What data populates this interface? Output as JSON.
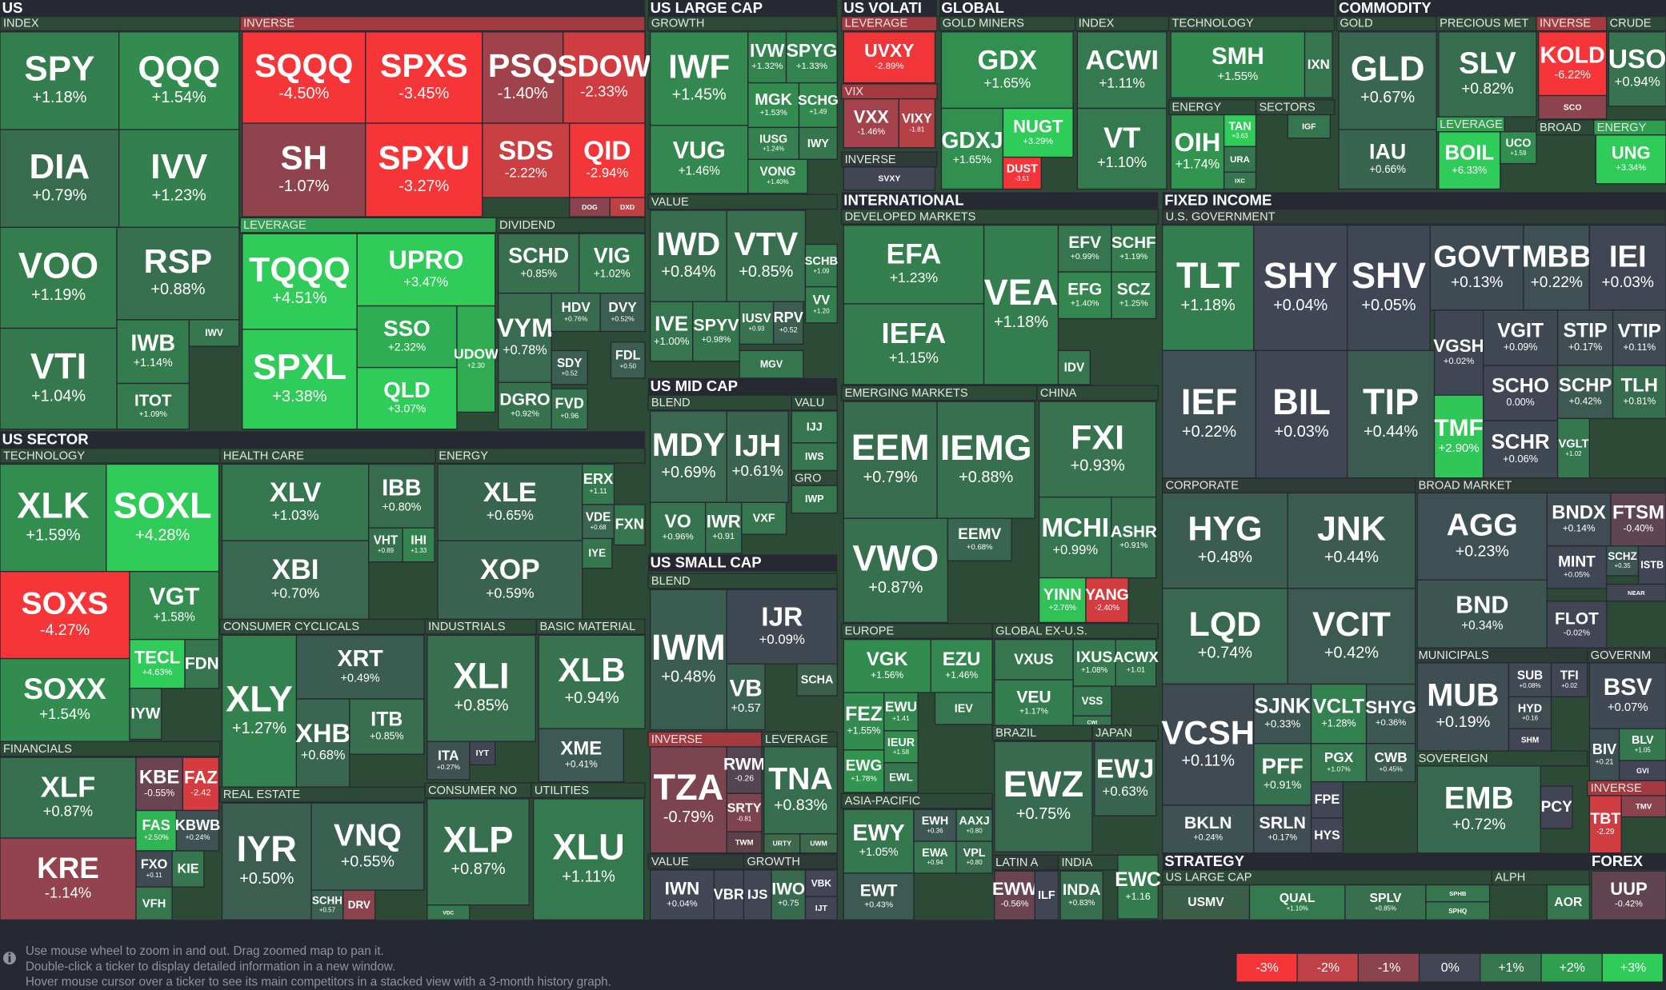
{
  "headers": [
    "US",
    "US LARGE CAP",
    "US VOLATI",
    "GLOBAL",
    "COMMODITY",
    "US SECTOR",
    "US MID CAP",
    "US SMALL CAP",
    "INTERNATIONAL",
    "FIXED INCOME",
    "STRATEGY",
    "FOREX"
  ],
  "group_labels": [
    "INDEX",
    "INVERSE",
    "LEVERAGE",
    "DIVIDEND",
    "GROWTH",
    "VALUE",
    "BLEND",
    "VALU",
    "GRO",
    "BLEND",
    "INVERSE",
    "LEVERAGE",
    "VALUE",
    "GROWTH",
    "LEVERAGE",
    "VIX",
    "INVERSE",
    "GOLD MINERS",
    "INDEX",
    "TECHNOLOGY",
    "ENERGY",
    "SECTORS",
    "GOLD",
    "PRECIOUS MET",
    "INVERSE",
    "CRUDE",
    "LEVERAGE",
    "BROAD",
    "ENERGY",
    "DEVELOPED MARKETS",
    "EMERGING MARKETS",
    "CHINA",
    "EUROPE",
    "GLOBAL EX-U.S.",
    "BRAZIL",
    "JAPAN",
    "ASIA-PACIFIC",
    "LATIN A",
    "INDIA",
    "U.S. GOVERNMENT",
    "CORPORATE",
    "BROAD MARKET",
    "MUNICIPALS",
    "GOVERNM",
    "SOVEREIGN",
    "INVERSE",
    "US LARGE CAP",
    "ALPH",
    "TECHNOLOGY",
    "HEALTH CARE",
    "ENERGY",
    "CONSUMER CYCLICALS",
    "INDUSTRIALS",
    "BASIC MATERIAL",
    "REAL ESTATE",
    "CONSUMER NO",
    "UTILITIES",
    "FINANCIALS"
  ],
  "tiles": [
    {
      "ticker": "SPY",
      "change": "+1.18%"
    },
    {
      "ticker": "QQQ",
      "change": "+1.54%"
    },
    {
      "ticker": "DIA",
      "change": "+0.79%"
    },
    {
      "ticker": "IVV",
      "change": "+1.23%"
    },
    {
      "ticker": "VOO",
      "change": "+1.19%"
    },
    {
      "ticker": "RSP",
      "change": "+0.88%"
    },
    {
      "ticker": "VTI",
      "change": "+1.04%"
    },
    {
      "ticker": "IWB",
      "change": "+1.14%"
    },
    {
      "ticker": "IWV",
      "color": "#35764e"
    },
    {
      "ticker": "ITOT",
      "change": "+1.09%"
    },
    {
      "ticker": "SQQQ",
      "change": "-4.50%"
    },
    {
      "ticker": "SPXS",
      "change": "-3.45%"
    },
    {
      "ticker": "PSQ",
      "change": "-1.40%"
    },
    {
      "ticker": "SDOW",
      "change": "-2.33%"
    },
    {
      "ticker": "SH",
      "change": "-1.07%"
    },
    {
      "ticker": "SPXU",
      "change": "-3.27%"
    },
    {
      "ticker": "SDS",
      "change": "-2.22%"
    },
    {
      "ticker": "QID",
      "change": "-2.94%"
    },
    {
      "ticker": "DOG",
      "color": "#8b444e"
    },
    {
      "ticker": "DXD",
      "color": "#bf4045"
    },
    {
      "ticker": "TQQQ",
      "change": "+4.51%"
    },
    {
      "ticker": "UPRO",
      "change": "+3.47%"
    },
    {
      "ticker": "SPXL",
      "change": "+3.38%"
    },
    {
      "ticker": "SSO",
      "change": "+2.32%"
    },
    {
      "ticker": "UDOW",
      "change": "+2.30"
    },
    {
      "ticker": "QLD",
      "change": "+3.07%"
    },
    {
      "ticker": "SCHD",
      "change": "+0.85%"
    },
    {
      "ticker": "VIG",
      "change": "+1.02%"
    },
    {
      "ticker": "VYM",
      "change": "+0.78%"
    },
    {
      "ticker": "HDV",
      "change": "+0.76%"
    },
    {
      "ticker": "DVY",
      "change": "+0.52%"
    },
    {
      "ticker": "SDY",
      "change": "+0.52"
    },
    {
      "ticker": "FDL",
      "change": "+0.50"
    },
    {
      "ticker": "DGRO",
      "change": "+0.92%"
    },
    {
      "ticker": "FVD",
      "change": "+0.96"
    },
    {
      "ticker": "IWF",
      "change": "+1.45%"
    },
    {
      "ticker": "IVW",
      "change": "+1.32%"
    },
    {
      "ticker": "SPYG",
      "change": "+1.33%"
    },
    {
      "ticker": "MGK",
      "change": "+1.53%"
    },
    {
      "ticker": "SCHG",
      "change": "+1.49"
    },
    {
      "ticker": "VUG",
      "change": "+1.46%"
    },
    {
      "ticker": "IUSG",
      "change": "+1.24%"
    },
    {
      "ticker": "IWY",
      "color": "#35764e"
    },
    {
      "ticker": "VONG",
      "change": "+1.40%"
    },
    {
      "ticker": "IWD",
      "change": "+0.84%"
    },
    {
      "ticker": "VTV",
      "change": "+0.85%"
    },
    {
      "ticker": "SCHB",
      "change": "+1.09"
    },
    {
      "ticker": "VV",
      "change": "+1.20"
    },
    {
      "ticker": "IVE",
      "change": "+1.00%"
    },
    {
      "ticker": "SPYV",
      "change": "+0.98%"
    },
    {
      "ticker": "IUSV",
      "change": "+0.93"
    },
    {
      "ticker": "RPV",
      "change": "+0.52"
    },
    {
      "ticker": "MGV",
      "color": "#35764e"
    },
    {
      "ticker": "MDY",
      "change": "+0.69%"
    },
    {
      "ticker": "IJH",
      "change": "+0.61%"
    },
    {
      "ticker": "VO",
      "change": "+0.96%"
    },
    {
      "ticker": "IWR",
      "change": "+0.91"
    },
    {
      "ticker": "VXF",
      "color": "#35764e"
    },
    {
      "ticker": "IJJ",
      "color": "#35764e"
    },
    {
      "ticker": "IWS",
      "color": "#35764e"
    },
    {
      "ticker": "IWP",
      "color": "#35764e"
    },
    {
      "ticker": "IWM",
      "change": "+0.48%"
    },
    {
      "ticker": "IJR",
      "change": "+0.09%"
    },
    {
      "ticker": "VB",
      "change": "+0.57"
    },
    {
      "ticker": "SCHA",
      "color": "#3a5e47"
    },
    {
      "ticker": "TZA",
      "change": "-0.79%"
    },
    {
      "ticker": "RWM",
      "change": "-0.26"
    },
    {
      "ticker": "SRTY",
      "change": "-0.81"
    },
    {
      "ticker": "TWM",
      "color": "#5e4048"
    },
    {
      "ticker": "TNA",
      "change": "+0.83%"
    },
    {
      "ticker": "URTY",
      "color": "#3f6a4a"
    },
    {
      "ticker": "UWM",
      "color": "#3f6a4a"
    },
    {
      "ticker": "IWN",
      "change": "+0.04%"
    },
    {
      "ticker": "VBR",
      "color": "#414554"
    },
    {
      "ticker": "IJS",
      "color": "#414554"
    },
    {
      "ticker": "IWO",
      "change": "+0.75"
    },
    {
      "ticker": "VBK",
      "color": "#414554"
    },
    {
      "ticker": "IJT",
      "color": "#414554"
    },
    {
      "ticker": "UVXY",
      "change": "-2.89%"
    },
    {
      "ticker": "VXX",
      "change": "-1.46%"
    },
    {
      "ticker": "VIXY",
      "change": "-1.81"
    },
    {
      "ticker": "SVXY",
      "color": "#414554"
    },
    {
      "ticker": "GDX",
      "change": "+1.65%"
    },
    {
      "ticker": "GDXJ",
      "change": "+1.65%"
    },
    {
      "ticker": "NUGT",
      "change": "+3.29%"
    },
    {
      "ticker": "DUST",
      "change": "-3.51"
    },
    {
      "ticker": "ACWI",
      "change": "+1.11%"
    },
    {
      "ticker": "VT",
      "change": "+1.10%"
    },
    {
      "ticker": "SMH",
      "change": "+1.55%"
    },
    {
      "ticker": "IXN",
      "color": "#35764e"
    },
    {
      "ticker": "OIH",
      "change": "+1.74%"
    },
    {
      "ticker": "TAN",
      "change": "+3.63"
    },
    {
      "ticker": "URA",
      "color": "#35764e"
    },
    {
      "ticker": "IXC",
      "color": "#35764e"
    },
    {
      "ticker": "IGF",
      "color": "#35764e"
    },
    {
      "ticker": "GLD",
      "change": "+0.67%"
    },
    {
      "ticker": "IAU",
      "change": "+0.66%"
    },
    {
      "ticker": "SLV",
      "change": "+0.82%"
    },
    {
      "ticker": "BOIL",
      "change": "+6.33%"
    },
    {
      "ticker": "UCO",
      "change": "+1.59"
    },
    {
      "ticker": "KOLD",
      "change": "-6.22%"
    },
    {
      "ticker": "SCO",
      "color": "#8b444e"
    },
    {
      "ticker": "USO",
      "change": "+0.94%"
    },
    {
      "ticker": "UNG",
      "change": "+3.34%"
    },
    {
      "ticker": "EFA",
      "change": "+1.23%"
    },
    {
      "ticker": "IEFA",
      "change": "+1.15%"
    },
    {
      "ticker": "VEA",
      "change": "+1.18%"
    },
    {
      "ticker": "EFV",
      "change": "+0.99%"
    },
    {
      "ticker": "SCHF",
      "change": "+1.19%"
    },
    {
      "ticker": "EFG",
      "change": "+1.40%"
    },
    {
      "ticker": "SCZ",
      "change": "+1.25%"
    },
    {
      "ticker": "IDV",
      "color": "#35764e"
    },
    {
      "ticker": "EEM",
      "change": "+0.79%"
    },
    {
      "ticker": "IEMG",
      "change": "+0.88%"
    },
    {
      "ticker": "VWO",
      "change": "+0.87%"
    },
    {
      "ticker": "EEMV",
      "change": "+0.68%"
    },
    {
      "ticker": "FXI",
      "change": "+0.93%"
    },
    {
      "ticker": "MCHI",
      "change": "+0.99%"
    },
    {
      "ticker": "ASHR",
      "change": "+0.91%"
    },
    {
      "ticker": "YINN",
      "change": "+2.76%"
    },
    {
      "ticker": "YANG",
      "change": "-2.40%"
    },
    {
      "ticker": "VGK",
      "change": "+1.56%"
    },
    {
      "ticker": "EZU",
      "change": "+1.46%"
    },
    {
      "ticker": "FEZ",
      "change": "+1.55%"
    },
    {
      "ticker": "EWU",
      "change": "+1.41"
    },
    {
      "ticker": "IEV",
      "color": "#35764e"
    },
    {
      "ticker": "EWG",
      "change": "+1.78%"
    },
    {
      "ticker": "IEUR",
      "change": "+1.58"
    },
    {
      "ticker": "EWL",
      "color": "#35764e"
    },
    {
      "ticker": "VXUS",
      "color": "#35764e"
    },
    {
      "ticker": "IXUS",
      "change": "+1.08%"
    },
    {
      "ticker": "ACWX",
      "change": "+1.01"
    },
    {
      "ticker": "VEU",
      "change": "+1.17%"
    },
    {
      "ticker": "VSS",
      "color": "#35764e"
    },
    {
      "ticker": "CWI",
      "color": "#35764e"
    },
    {
      "ticker": "EWZ",
      "change": "+0.75%"
    },
    {
      "ticker": "EWJ",
      "change": "+0.63%"
    },
    {
      "ticker": "EWY",
      "change": "+1.05%"
    },
    {
      "ticker": "EWH",
      "change": "+0.36"
    },
    {
      "ticker": "AAXJ",
      "change": "+0.80"
    },
    {
      "ticker": "EWA",
      "change": "+0.94"
    },
    {
      "ticker": "VPL",
      "change": "+0.80"
    },
    {
      "ticker": "EWT",
      "change": "+0.43%"
    },
    {
      "ticker": "EWW",
      "change": "-0.56%"
    },
    {
      "ticker": "ILF",
      "color": "#414554"
    },
    {
      "ticker": "INDA",
      "change": "+0.83%"
    },
    {
      "ticker": "EWC",
      "change": "+1.16"
    },
    {
      "ticker": "TLT",
      "change": "+1.18%"
    },
    {
      "ticker": "SHY",
      "change": "+0.04%"
    },
    {
      "ticker": "SHV",
      "change": "+0.05%"
    },
    {
      "ticker": "GOVT",
      "change": "+0.13%"
    },
    {
      "ticker": "MBB",
      "change": "+0.22%"
    },
    {
      "ticker": "IEI",
      "change": "+0.03%"
    },
    {
      "ticker": "IEF",
      "change": "+0.22%"
    },
    {
      "ticker": "BIL",
      "change": "+0.03%"
    },
    {
      "ticker": "TIP",
      "change": "+0.44%"
    },
    {
      "ticker": "VGSH",
      "change": "+0.02%"
    },
    {
      "ticker": "VGIT",
      "change": "+0.09%"
    },
    {
      "ticker": "STIP",
      "change": "+0.17%"
    },
    {
      "ticker": "VTIP",
      "change": "+0.11%"
    },
    {
      "ticker": "SCHO",
      "change": "0.00%"
    },
    {
      "ticker": "SCHP",
      "change": "+0.42%"
    },
    {
      "ticker": "TLH",
      "change": "+0.81%"
    },
    {
      "ticker": "TMF",
      "change": "+2.90%"
    },
    {
      "ticker": "SCHR",
      "change": "+0.06%"
    },
    {
      "ticker": "VGLT",
      "change": "+1.02"
    },
    {
      "ticker": "HYG",
      "change": "+0.48%"
    },
    {
      "ticker": "JNK",
      "change": "+0.44%"
    },
    {
      "ticker": "LQD",
      "change": "+0.74%"
    },
    {
      "ticker": "VCIT",
      "change": "+0.42%"
    },
    {
      "ticker": "VCSH",
      "change": "+0.11%"
    },
    {
      "ticker": "SJNK",
      "change": "+0.33%"
    },
    {
      "ticker": "VCLT",
      "change": "+1.28%"
    },
    {
      "ticker": "SHYG",
      "change": "+0.36%"
    },
    {
      "ticker": "PFF",
      "change": "+0.91%"
    },
    {
      "ticker": "PGX",
      "change": "+1.07%"
    },
    {
      "ticker": "CWB",
      "change": "+0.45%"
    },
    {
      "ticker": "FPE",
      "color": "#414554"
    },
    {
      "ticker": "BKLN",
      "change": "+0.24%"
    },
    {
      "ticker": "SRLN",
      "change": "+0.17%"
    },
    {
      "ticker": "HYS",
      "color": "#414554"
    },
    {
      "ticker": "AGG",
      "change": "+0.23%"
    },
    {
      "ticker": "BNDX",
      "change": "+0.14%"
    },
    {
      "ticker": "FTSM",
      "change": "-0.40%"
    },
    {
      "ticker": "MINT",
      "change": "+0.05%"
    },
    {
      "ticker": "SCHZ",
      "change": "+0.35"
    },
    {
      "ticker": "ISTB",
      "color": "#414554"
    },
    {
      "ticker": "NEAR",
      "color": "#414554"
    },
    {
      "ticker": "BND",
      "change": "+0.34%"
    },
    {
      "ticker": "FLOT",
      "change": "-0.02%"
    },
    {
      "ticker": "MUB",
      "change": "+0.19%"
    },
    {
      "ticker": "SUB",
      "change": "+0.08%"
    },
    {
      "ticker": "TFI",
      "change": "+0.02"
    },
    {
      "ticker": "HYD",
      "change": "+0.16"
    },
    {
      "ticker": "SHM",
      "color": "#414554"
    },
    {
      "ticker": "BSV",
      "change": "+0.07%"
    },
    {
      "ticker": "BIV",
      "change": "+0.21"
    },
    {
      "ticker": "BLV",
      "change": "+1.05"
    },
    {
      "ticker": "GVI",
      "color": "#414554"
    },
    {
      "ticker": "EMB",
      "change": "+0.72%"
    },
    {
      "ticker": "PCY",
      "color": "#414554"
    },
    {
      "ticker": "TBT",
      "change": "-2.29"
    },
    {
      "ticker": "TMV",
      "color": "#8b444e"
    },
    {
      "ticker": "USMV",
      "color": "#3a5e47"
    },
    {
      "ticker": "QUAL",
      "change": "+1.10%"
    },
    {
      "ticker": "SPLV",
      "change": "+0.85%"
    },
    {
      "ticker": "SPHB",
      "color": "#35764e"
    },
    {
      "ticker": "SPHQ",
      "color": "#35764e"
    },
    {
      "ticker": "AOR",
      "color": "#35764e"
    },
    {
      "ticker": "UUP",
      "change": "-0.42%"
    },
    {
      "ticker": "XLK",
      "change": "+1.59%"
    },
    {
      "ticker": "SOXL",
      "change": "+4.28%"
    },
    {
      "ticker": "SOXS",
      "change": "-4.27%"
    },
    {
      "ticker": "VGT",
      "change": "+1.58%"
    },
    {
      "ticker": "TECL",
      "change": "+4.63%"
    },
    {
      "ticker": "FDN",
      "color": "#35764e"
    },
    {
      "ticker": "SOXX",
      "change": "+1.54%"
    },
    {
      "ticker": "IYW",
      "color": "#35764e"
    },
    {
      "ticker": "XLV",
      "change": "+1.03%"
    },
    {
      "ticker": "XBI",
      "change": "+0.70%"
    },
    {
      "ticker": "IBB",
      "change": "+0.80%"
    },
    {
      "ticker": "VHT",
      "change": "+0.89"
    },
    {
      "ticker": "IHI",
      "change": "+1.33"
    },
    {
      "ticker": "XLE",
      "change": "+0.65%"
    },
    {
      "ticker": "XOP",
      "change": "+0.59%"
    },
    {
      "ticker": "ERX",
      "change": "+1.11"
    },
    {
      "ticker": "VDE",
      "change": "+0.68"
    },
    {
      "ticker": "FXN",
      "color": "#35764e"
    },
    {
      "ticker": "IYE",
      "color": "#35764e"
    },
    {
      "ticker": "XLY",
      "change": "+1.27%"
    },
    {
      "ticker": "XRT",
      "change": "+0.49%"
    },
    {
      "ticker": "XHB",
      "change": "+0.68%"
    },
    {
      "ticker": "ITB",
      "change": "+0.85%"
    },
    {
      "ticker": "XLI",
      "change": "+0.85%"
    },
    {
      "ticker": "ITA",
      "change": "+0.27%"
    },
    {
      "ticker": "IYT",
      "color": "#414554"
    },
    {
      "ticker": "XLB",
      "change": "+0.94%"
    },
    {
      "ticker": "XME",
      "change": "+0.41%"
    },
    {
      "ticker": "IYR",
      "change": "+0.50%"
    },
    {
      "ticker": "VNQ",
      "change": "+0.55%"
    },
    {
      "ticker": "SCHH",
      "change": "+0.57"
    },
    {
      "ticker": "DRV",
      "color": "#8b444e"
    },
    {
      "ticker": "XLP",
      "change": "+0.87%"
    },
    {
      "ticker": "VDC",
      "color": "#35764e"
    },
    {
      "ticker": "XLU",
      "change": "+1.11%"
    },
    {
      "ticker": "XLF",
      "change": "+0.87%"
    },
    {
      "ticker": "KRE",
      "change": "-1.14%"
    },
    {
      "ticker": "KBE",
      "change": "-0.55%"
    },
    {
      "ticker": "FAZ",
      "change": "-2.42"
    },
    {
      "ticker": "FAS",
      "change": "+2.50%"
    },
    {
      "ticker": "KBWB",
      "change": "+0.24%"
    },
    {
      "ticker": "FXO",
      "change": "+0.11"
    },
    {
      "ticker": "KIE",
      "color": "#35764e"
    },
    {
      "ticker": "VFH",
      "color": "#35764e"
    }
  ],
  "footer_notes": [
    "Use mouse wheel to zoom in and out. Drag zoomed map to pan it.",
    "Double-click a ticker to display detailed information in a new window.",
    "Hover mouse cursor over a ticker to see its main competitors in a stacked view with a 3-month history graph."
  ],
  "legend": [
    {
      "label": "-3%",
      "color": "#f63538"
    },
    {
      "label": "-2%",
      "color": "#bf4045"
    },
    {
      "label": "-1%",
      "color": "#8b444e"
    },
    {
      "label": "0%",
      "color": "#414554"
    },
    {
      "label": "+1%",
      "color": "#35764e"
    },
    {
      "label": "+2%",
      "color": "#2f9e4f"
    },
    {
      "label": "+3%",
      "color": "#30cc5a"
    }
  ]
}
